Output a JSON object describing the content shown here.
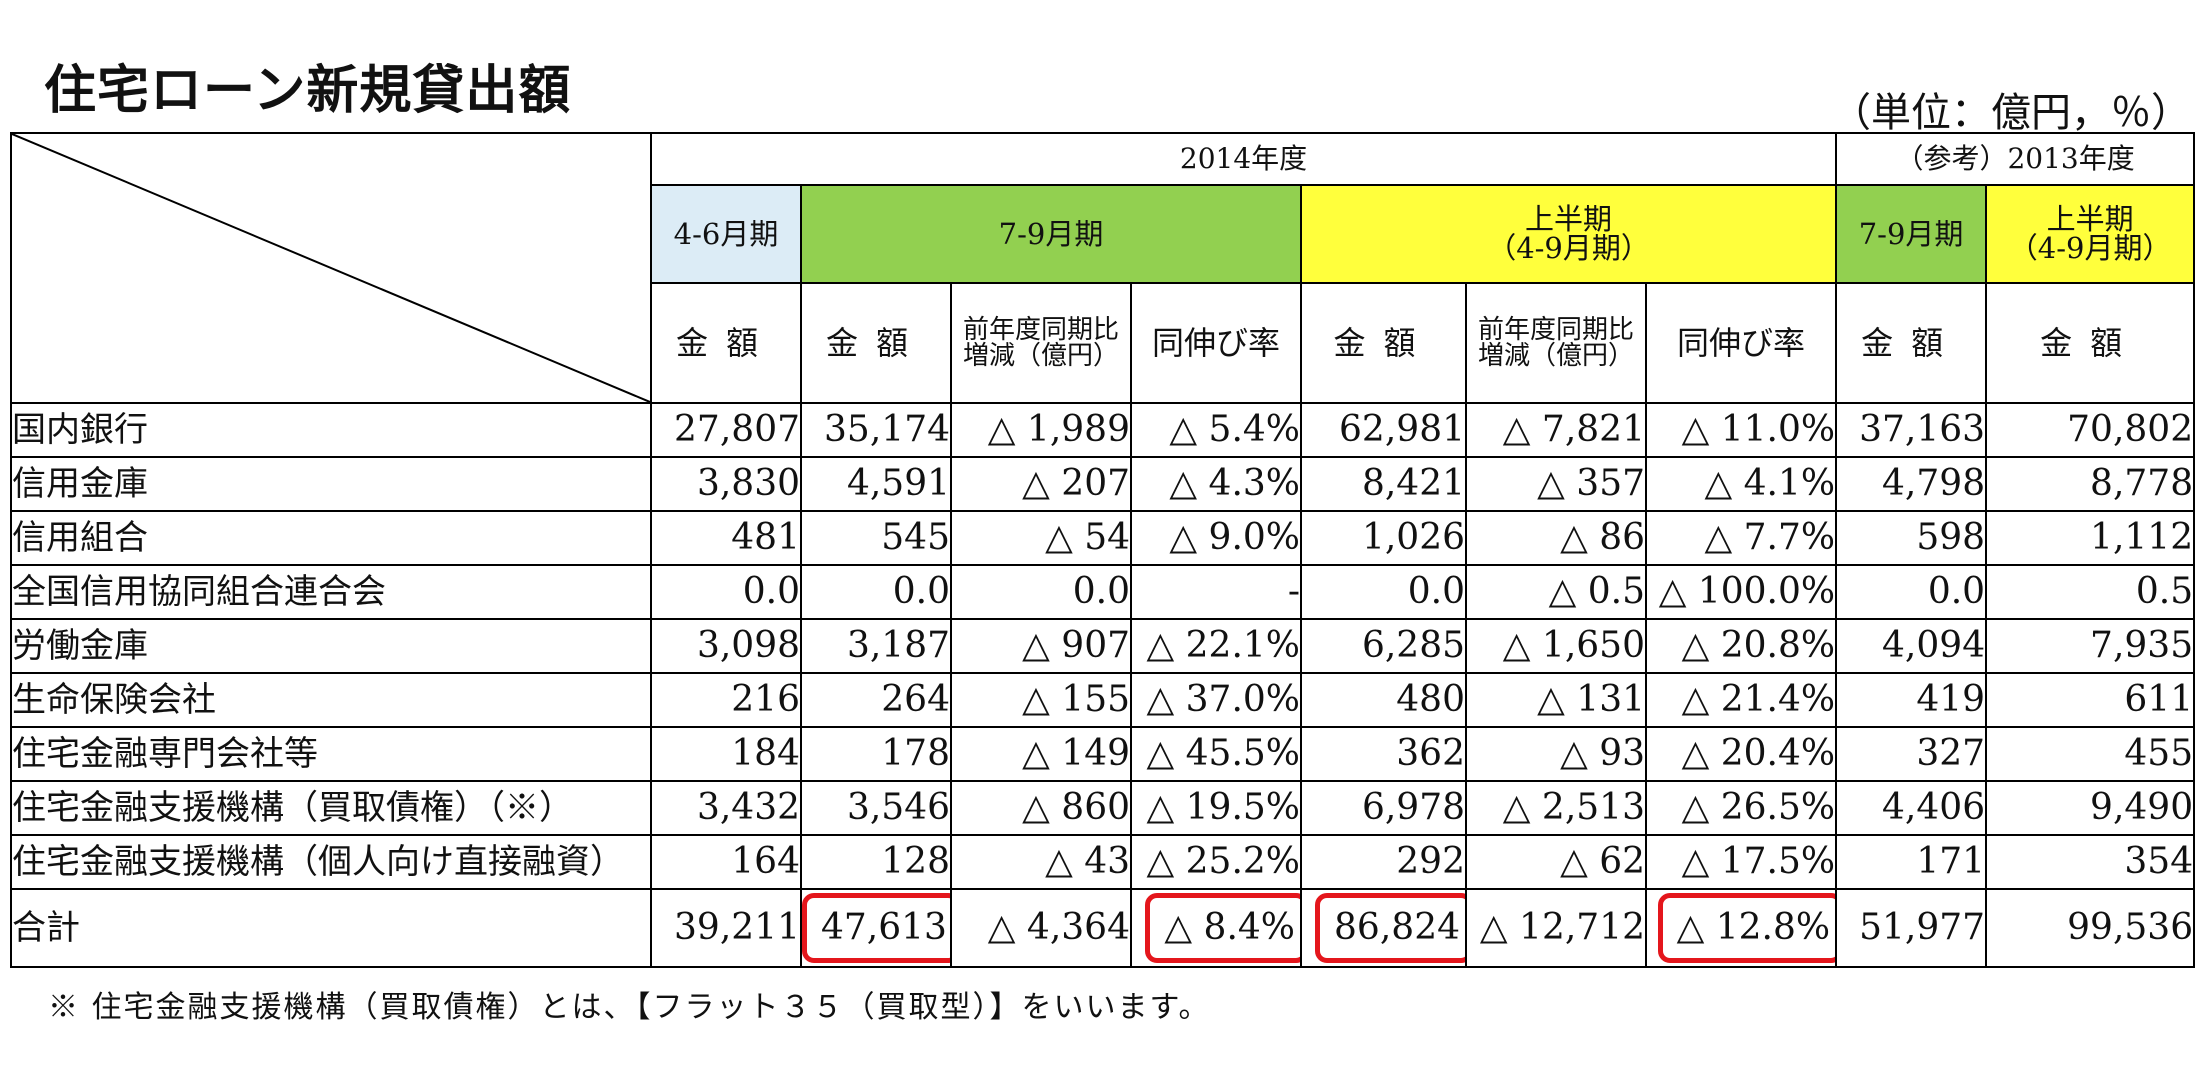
{
  "title": "住宅ローン新規貸出額",
  "unit": "（単位：億円，％）",
  "header": {
    "fy2014": "2014年度",
    "fy2013_ref": "（参考）2013年度",
    "q1": "4-6月期",
    "q2": "7-9月期",
    "h1_line1": "上半期",
    "h1_line2": "（4-9月期）",
    "ref_q2": "7-9月期",
    "ref_h1_line1": "上半期",
    "ref_h1_line2": "（4-9月期）",
    "kingaku": "金額",
    "yoy_diff_line1": "前年度同期比",
    "yoy_diff_line2": "増減（億円）",
    "yoy_rate": "同伸び率"
  },
  "rows": [
    {
      "label": "国内銀行",
      "q1": "27,807",
      "q2": "35,174",
      "q2_diff": "△ 1,989",
      "q2_rate": "△ 5.4%",
      "h1": "62,981",
      "h1_diff": "△ 7,821",
      "h1_rate": "△ 11.0%",
      "ref_q2": "37,163",
      "ref_h1": "70,802"
    },
    {
      "label": "信用金庫",
      "q1": "3,830",
      "q2": "4,591",
      "q2_diff": "△ 207",
      "q2_rate": "△ 4.3%",
      "h1": "8,421",
      "h1_diff": "△ 357",
      "h1_rate": "△ 4.1%",
      "ref_q2": "4,798",
      "ref_h1": "8,778"
    },
    {
      "label": "信用組合",
      "q1": "481",
      "q2": "545",
      "q2_diff": "△ 54",
      "q2_rate": "△ 9.0%",
      "h1": "1,026",
      "h1_diff": "△ 86",
      "h1_rate": "△ 7.7%",
      "ref_q2": "598",
      "ref_h1": "1,112"
    },
    {
      "label": "全国信用協同組合連合会",
      "q1": "0.0",
      "q2": "0.0",
      "q2_diff": "0.0",
      "q2_rate": "-",
      "h1": "0.0",
      "h1_diff": "△ 0.5",
      "h1_rate": "△ 100.0%",
      "ref_q2": "0.0",
      "ref_h1": "0.5"
    },
    {
      "label": "労働金庫",
      "q1": "3,098",
      "q2": "3,187",
      "q2_diff": "△ 907",
      "q2_rate": "△ 22.1%",
      "h1": "6,285",
      "h1_diff": "△ 1,650",
      "h1_rate": "△ 20.8%",
      "ref_q2": "4,094",
      "ref_h1": "7,935"
    },
    {
      "label": "生命保険会社",
      "q1": "216",
      "q2": "264",
      "q2_diff": "△ 155",
      "q2_rate": "△ 37.0%",
      "h1": "480",
      "h1_diff": "△ 131",
      "h1_rate": "△ 21.4%",
      "ref_q2": "419",
      "ref_h1": "611"
    },
    {
      "label": "住宅金融専門会社等",
      "q1": "184",
      "q2": "178",
      "q2_diff": "△ 149",
      "q2_rate": "△ 45.5%",
      "h1": "362",
      "h1_diff": "△ 93",
      "h1_rate": "△ 20.4%",
      "ref_q2": "327",
      "ref_h1": "455"
    },
    {
      "label": "住宅金融支援機構（買取債権）（※）",
      "q1": "3,432",
      "q2": "3,546",
      "q2_diff": "△ 860",
      "q2_rate": "△ 19.5%",
      "h1": "6,978",
      "h1_diff": "△ 2,513",
      "h1_rate": "△ 26.5%",
      "ref_q2": "4,406",
      "ref_h1": "9,490"
    },
    {
      "label": "住宅金融支援機構（個人向け直接融資）",
      "q1": "164",
      "q2": "128",
      "q2_diff": "△ 43",
      "q2_rate": "△ 25.2%",
      "h1": "292",
      "h1_diff": "△ 62",
      "h1_rate": "△ 17.5%",
      "ref_q2": "171",
      "ref_h1": "354"
    }
  ],
  "total": {
    "label": "合計",
    "q1": "39,211",
    "q2": "47,613",
    "q2_diff": "△ 4,364",
    "q2_rate": "△ 8.4%",
    "h1": "86,824",
    "h1_diff": "△ 12,712",
    "h1_rate": "△ 12.8%",
    "ref_q2": "51,977",
    "ref_h1": "99,536"
  },
  "note": "※ 住宅金融支援機構（買取債権）とは、【フラット３５（買取型）】をいいます。",
  "colors": {
    "q1_header": "#dcecf6",
    "q2_header": "#92d050",
    "h1_header": "#ffff3c",
    "highlight": "#e4161c"
  }
}
